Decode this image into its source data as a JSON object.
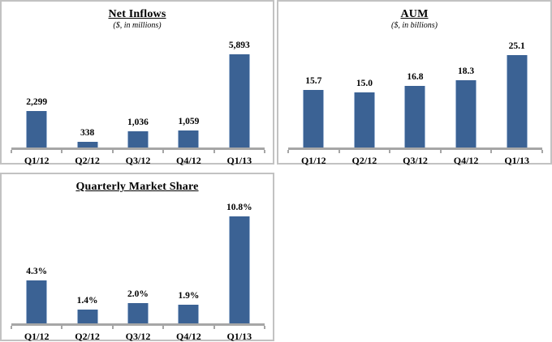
{
  "page": {
    "background": "#ffffff"
  },
  "colors": {
    "bar_fill": "#3b6294",
    "bar_edge_highlight": "#9db4d2",
    "axis_line": "#a6a6a6",
    "panel_border": "#c2c2c2",
    "text": "#000000"
  },
  "chart_data": [
    {
      "id": "net-inflows",
      "type": "bar",
      "title": "Net Inflows",
      "subtitle": "($, in millions)",
      "categories": [
        "Q1/12",
        "Q2/12",
        "Q3/12",
        "Q4/12",
        "Q1/13"
      ],
      "values": [
        2299,
        338,
        1036,
        1059,
        5893
      ],
      "value_labels": [
        "2,299",
        "338",
        "1,036",
        "1,059",
        "5,893"
      ],
      "xlabel": "",
      "ylabel": "",
      "ylim": [
        0,
        6400
      ],
      "grid": false,
      "legend": "none",
      "y_axis_visible": false,
      "data_labels_position": "above-bar"
    },
    {
      "id": "aum",
      "type": "bar",
      "title": "AUM",
      "subtitle": "($, in billions)",
      "categories": [
        "Q1/12",
        "Q2/12",
        "Q3/12",
        "Q4/12",
        "Q1/13"
      ],
      "values": [
        15.7,
        15.0,
        16.8,
        18.3,
        25.1
      ],
      "value_labels": [
        "15.7",
        "15.0",
        "16.8",
        "18.3",
        "25.1"
      ],
      "xlabel": "",
      "ylabel": "",
      "ylim": [
        0,
        28
      ],
      "grid": false,
      "legend": "none",
      "y_axis_visible": false,
      "data_labels_position": "above-bar"
    },
    {
      "id": "quarterly-market-share",
      "type": "bar",
      "title": "Quarterly Market Share",
      "subtitle": "",
      "categories": [
        "Q1/12",
        "Q2/12",
        "Q3/12",
        "Q4/12",
        "Q1/13"
      ],
      "values": [
        4.3,
        1.4,
        2.0,
        1.9,
        10.8
      ],
      "value_labels": [
        "4.3%",
        "1.4%",
        "2.0%",
        "1.9%",
        "10.8%"
      ],
      "xlabel": "",
      "ylabel": "",
      "ylim": [
        0,
        12
      ],
      "grid": false,
      "legend": "none",
      "y_axis_visible": false,
      "data_labels_position": "above-bar"
    }
  ]
}
